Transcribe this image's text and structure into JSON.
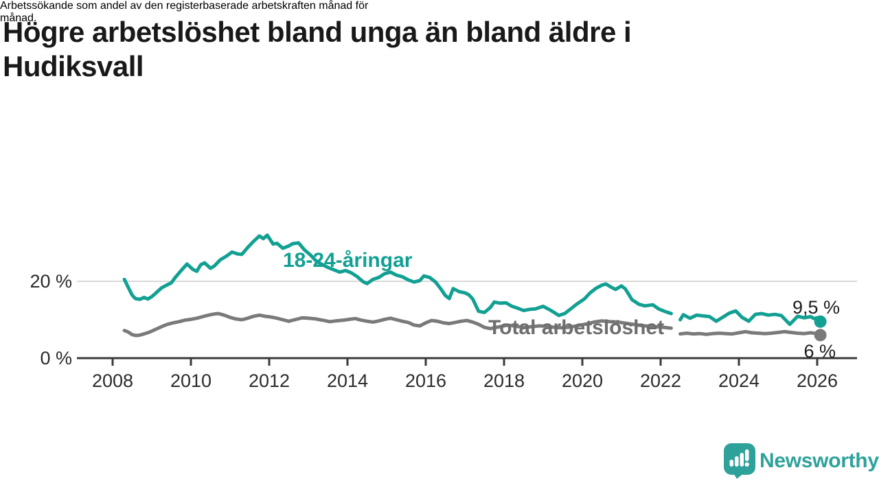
{
  "header": {
    "title_lines": [
      "Högre arbetslöshet bland unga än bland äldre i",
      "Hudiksvall"
    ],
    "subtitle_lines": [
      "Arbetssökande som andel av den registerbaserade arbetskraften månad för",
      "månad."
    ]
  },
  "footer": {
    "brand": "Newsworthy",
    "brand_color": "#2EA29A",
    "icon": "newsworthy-speech-bubble-bar-chart-icon"
  },
  "chart_data": {
    "type": "line",
    "title": "Högre arbetslöshet bland unga än bland äldre i Hudiksvall",
    "subtitle": "Arbetssökande som andel av den registerbaserade arbetskraften månad för månad.",
    "xlabel": "",
    "ylabel": "",
    "grid": "single-horizontal-gridline-at-20",
    "legend": "inline-labels",
    "axis_color": "#3A3A3A",
    "grid_color": "#D8D8D8",
    "x_range": [
      2008.3,
      2026.08
    ],
    "y_range": [
      0,
      34
    ],
    "x_ticks": [
      {
        "value": 2008,
        "label": "2008"
      },
      {
        "value": 2010,
        "label": "2010"
      },
      {
        "value": 2012,
        "label": "2012"
      },
      {
        "value": 2014,
        "label": "2014"
      },
      {
        "value": 2016,
        "label": "2016"
      },
      {
        "value": 2018,
        "label": "2018"
      },
      {
        "value": 2020,
        "label": "2020"
      },
      {
        "value": 2022,
        "label": "2022"
      },
      {
        "value": 2024,
        "label": "2024"
      },
      {
        "value": 2026,
        "label": "2026"
      }
    ],
    "y_ticks": [
      {
        "value": 0,
        "label": "0 %"
      },
      {
        "value": 20,
        "label": "20 %"
      }
    ],
    "series": [
      {
        "name": "18-24-åringar",
        "color": "#12A093",
        "label_color": "#12A093",
        "end_label": "9,5 %",
        "end_value": 9.5,
        "segments": [
          [
            [
              2008.3,
              20.5
            ],
            [
              2008.42,
              18.0
            ],
            [
              2008.5,
              16.4
            ],
            [
              2008.58,
              15.5
            ],
            [
              2008.7,
              15.3
            ],
            [
              2008.8,
              15.8
            ],
            [
              2008.9,
              15.4
            ],
            [
              2009.0,
              16.0
            ],
            [
              2009.1,
              16.9
            ],
            [
              2009.25,
              18.3
            ],
            [
              2009.4,
              19.1
            ],
            [
              2009.5,
              19.6
            ],
            [
              2009.6,
              21.0
            ],
            [
              2009.75,
              22.8
            ],
            [
              2009.9,
              24.5
            ],
            [
              2010.05,
              23.1
            ],
            [
              2010.15,
              22.6
            ],
            [
              2010.25,
              24.3
            ],
            [
              2010.35,
              24.8
            ],
            [
              2010.5,
              23.4
            ],
            [
              2010.6,
              24.0
            ],
            [
              2010.75,
              25.6
            ],
            [
              2010.9,
              26.5
            ],
            [
              2011.05,
              27.6
            ],
            [
              2011.2,
              27.1
            ],
            [
              2011.3,
              27.0
            ],
            [
              2011.45,
              28.8
            ],
            [
              2011.6,
              30.4
            ],
            [
              2011.75,
              31.8
            ],
            [
              2011.85,
              31.1
            ],
            [
              2011.95,
              32.0
            ],
            [
              2012.1,
              29.7
            ],
            [
              2012.2,
              29.9
            ],
            [
              2012.35,
              28.6
            ],
            [
              2012.5,
              29.2
            ],
            [
              2012.6,
              29.8
            ],
            [
              2012.75,
              30.0
            ],
            [
              2012.9,
              28.2
            ],
            [
              2013.05,
              26.9
            ],
            [
              2013.2,
              25.3
            ],
            [
              2013.35,
              24.4
            ],
            [
              2013.5,
              23.6
            ],
            [
              2013.65,
              23.0
            ],
            [
              2013.8,
              22.4
            ],
            [
              2013.95,
              22.8
            ],
            [
              2014.1,
              22.2
            ],
            [
              2014.25,
              21.2
            ],
            [
              2014.4,
              19.9
            ],
            [
              2014.5,
              19.4
            ],
            [
              2014.65,
              20.5
            ],
            [
              2014.8,
              21.0
            ],
            [
              2014.95,
              22.0
            ],
            [
              2015.1,
              22.4
            ],
            [
              2015.25,
              21.6
            ],
            [
              2015.4,
              21.2
            ],
            [
              2015.55,
              20.4
            ],
            [
              2015.7,
              19.8
            ],
            [
              2015.85,
              20.2
            ],
            [
              2015.95,
              21.4
            ],
            [
              2016.1,
              21.0
            ],
            [
              2016.25,
              19.8
            ],
            [
              2016.4,
              17.8
            ],
            [
              2016.5,
              16.3
            ],
            [
              2016.6,
              15.5
            ],
            [
              2016.7,
              18.1
            ],
            [
              2016.85,
              17.3
            ],
            [
              2017.0,
              17.0
            ],
            [
              2017.1,
              16.5
            ],
            [
              2017.2,
              15.4
            ],
            [
              2017.35,
              12.2
            ],
            [
              2017.5,
              11.9
            ],
            [
              2017.65,
              13.2
            ],
            [
              2017.75,
              14.6
            ],
            [
              2017.9,
              14.3
            ],
            [
              2018.05,
              14.4
            ],
            [
              2018.2,
              13.5
            ],
            [
              2018.35,
              13.0
            ],
            [
              2018.5,
              12.4
            ],
            [
              2018.65,
              12.7
            ],
            [
              2018.8,
              12.8
            ],
            [
              2019.0,
              13.5
            ],
            [
              2019.2,
              12.4
            ],
            [
              2019.4,
              11.1
            ],
            [
              2019.55,
              11.6
            ],
            [
              2019.7,
              12.8
            ],
            [
              2019.85,
              14.0
            ],
            [
              2020.05,
              15.4
            ],
            [
              2020.2,
              17.0
            ],
            [
              2020.35,
              18.2
            ],
            [
              2020.5,
              19.0
            ],
            [
              2020.6,
              19.3
            ],
            [
              2020.75,
              18.4
            ],
            [
              2020.85,
              17.9
            ],
            [
              2021.0,
              18.8
            ],
            [
              2021.1,
              18.0
            ],
            [
              2021.27,
              15.2
            ],
            [
              2021.45,
              14.0
            ],
            [
              2021.6,
              13.6
            ],
            [
              2021.8,
              13.9
            ],
            [
              2021.95,
              12.8
            ],
            [
              2022.1,
              12.2
            ],
            [
              2022.27,
              11.6
            ]
          ],
          [
            [
              2022.5,
              10.0
            ],
            [
              2022.58,
              11.3
            ],
            [
              2022.75,
              10.4
            ],
            [
              2022.92,
              11.2
            ],
            [
              2023.08,
              11.0
            ],
            [
              2023.25,
              10.8
            ],
            [
              2023.42,
              9.6
            ],
            [
              2023.58,
              10.6
            ],
            [
              2023.75,
              11.7
            ],
            [
              2023.92,
              12.3
            ],
            [
              2024.08,
              10.6
            ],
            [
              2024.25,
              9.6
            ],
            [
              2024.42,
              11.4
            ],
            [
              2024.58,
              11.6
            ],
            [
              2024.75,
              11.2
            ],
            [
              2024.92,
              11.4
            ],
            [
              2025.08,
              11.1
            ],
            [
              2025.3,
              8.8
            ],
            [
              2025.5,
              10.9
            ],
            [
              2025.67,
              10.5
            ],
            [
              2025.83,
              10.8
            ],
            [
              2025.92,
              10.3
            ],
            [
              2026.0,
              10.5
            ],
            [
              2026.08,
              9.5
            ]
          ]
        ]
      },
      {
        "name": "Total arbetslöshet",
        "color": "#7A7A7A",
        "label_color": "#6E6E6E",
        "end_label": "6 %",
        "end_value": 6.0,
        "segments": [
          [
            [
              2008.3,
              7.2
            ],
            [
              2008.4,
              6.8
            ],
            [
              2008.5,
              6.1
            ],
            [
              2008.6,
              5.9
            ],
            [
              2008.7,
              6.0
            ],
            [
              2008.8,
              6.3
            ],
            [
              2008.95,
              6.8
            ],
            [
              2009.1,
              7.5
            ],
            [
              2009.25,
              8.2
            ],
            [
              2009.4,
              8.8
            ],
            [
              2009.55,
              9.2
            ],
            [
              2009.7,
              9.5
            ],
            [
              2009.85,
              9.9
            ],
            [
              2010.0,
              10.1
            ],
            [
              2010.15,
              10.4
            ],
            [
              2010.3,
              10.8
            ],
            [
              2010.45,
              11.2
            ],
            [
              2010.6,
              11.5
            ],
            [
              2010.7,
              11.6
            ],
            [
              2010.85,
              11.2
            ],
            [
              2011.0,
              10.6
            ],
            [
              2011.15,
              10.2
            ],
            [
              2011.3,
              10.0
            ],
            [
              2011.45,
              10.4
            ],
            [
              2011.6,
              10.9
            ],
            [
              2011.75,
              11.2
            ],
            [
              2011.9,
              10.9
            ],
            [
              2012.05,
              10.7
            ],
            [
              2012.2,
              10.4
            ],
            [
              2012.35,
              10.0
            ],
            [
              2012.5,
              9.6
            ],
            [
              2012.65,
              10.0
            ],
            [
              2012.85,
              10.5
            ],
            [
              2013.0,
              10.4
            ],
            [
              2013.2,
              10.2
            ],
            [
              2013.4,
              9.8
            ],
            [
              2013.55,
              9.5
            ],
            [
              2013.7,
              9.7
            ],
            [
              2013.9,
              9.9
            ],
            [
              2014.05,
              10.1
            ],
            [
              2014.2,
              10.3
            ],
            [
              2014.35,
              9.9
            ],
            [
              2014.5,
              9.6
            ],
            [
              2014.65,
              9.4
            ],
            [
              2014.8,
              9.7
            ],
            [
              2014.95,
              10.1
            ],
            [
              2015.1,
              10.4
            ],
            [
              2015.25,
              10.0
            ],
            [
              2015.4,
              9.6
            ],
            [
              2015.55,
              9.3
            ],
            [
              2015.7,
              8.6
            ],
            [
              2015.85,
              8.4
            ],
            [
              2016.0,
              9.2
            ],
            [
              2016.15,
              9.8
            ],
            [
              2016.3,
              9.6
            ],
            [
              2016.45,
              9.2
            ],
            [
              2016.6,
              9.0
            ],
            [
              2016.75,
              9.3
            ],
            [
              2016.9,
              9.6
            ],
            [
              2017.05,
              9.8
            ],
            [
              2017.2,
              9.4
            ],
            [
              2017.35,
              8.8
            ],
            [
              2017.5,
              8.0
            ],
            [
              2017.65,
              7.7
            ],
            [
              2017.8,
              8.0
            ],
            [
              2017.95,
              8.3
            ],
            [
              2018.1,
              8.6
            ],
            [
              2018.3,
              8.3
            ],
            [
              2018.5,
              8.0
            ],
            [
              2018.7,
              8.2
            ],
            [
              2018.9,
              8.4
            ],
            [
              2019.1,
              8.3
            ],
            [
              2019.3,
              8.0
            ],
            [
              2019.5,
              7.9
            ],
            [
              2019.7,
              8.1
            ],
            [
              2019.9,
              8.5
            ],
            [
              2020.1,
              8.9
            ],
            [
              2020.3,
              9.4
            ],
            [
              2020.5,
              9.7
            ],
            [
              2020.7,
              9.5
            ],
            [
              2020.9,
              9.4
            ],
            [
              2021.1,
              9.1
            ],
            [
              2021.3,
              8.8
            ],
            [
              2021.5,
              8.5
            ],
            [
              2021.7,
              8.3
            ],
            [
              2021.9,
              8.2
            ],
            [
              2022.1,
              8.0
            ],
            [
              2022.27,
              7.8
            ]
          ],
          [
            [
              2022.5,
              6.3
            ],
            [
              2022.67,
              6.5
            ],
            [
              2022.83,
              6.3
            ],
            [
              2023.0,
              6.4
            ],
            [
              2023.17,
              6.2
            ],
            [
              2023.33,
              6.4
            ],
            [
              2023.5,
              6.5
            ],
            [
              2023.67,
              6.4
            ],
            [
              2023.83,
              6.3
            ],
            [
              2024.0,
              6.6
            ],
            [
              2024.17,
              6.9
            ],
            [
              2024.33,
              6.6
            ],
            [
              2024.5,
              6.5
            ],
            [
              2024.67,
              6.4
            ],
            [
              2024.83,
              6.5
            ],
            [
              2025.0,
              6.7
            ],
            [
              2025.17,
              6.9
            ],
            [
              2025.33,
              6.7
            ],
            [
              2025.5,
              6.5
            ],
            [
              2025.67,
              6.4
            ],
            [
              2025.83,
              6.6
            ],
            [
              2026.0,
              6.4
            ],
            [
              2026.08,
              6.0
            ]
          ]
        ]
      }
    ]
  }
}
